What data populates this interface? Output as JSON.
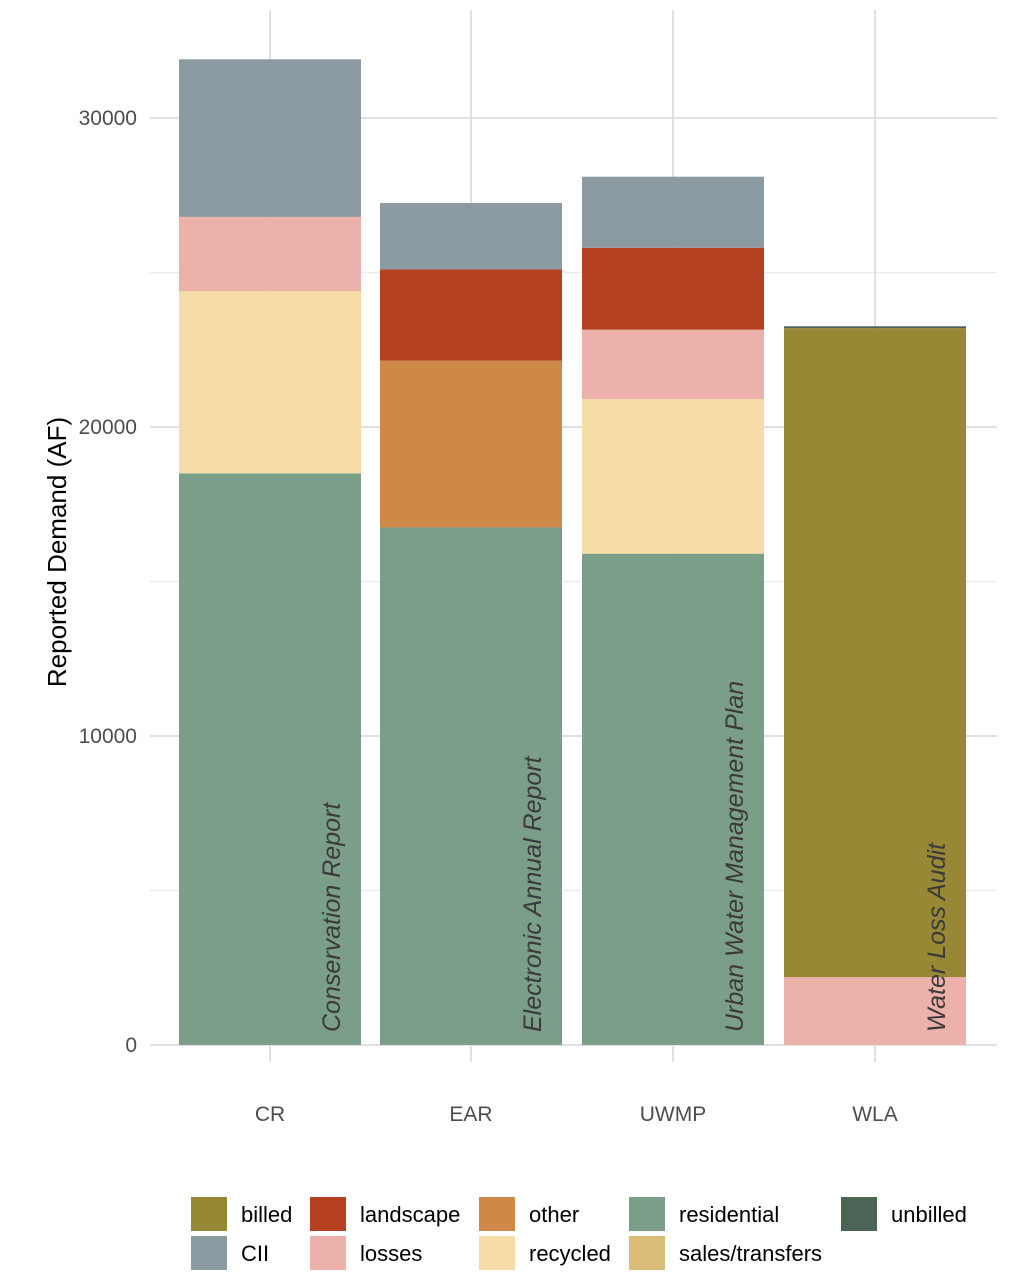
{
  "chart_data": {
    "type": "bar",
    "stacked": true,
    "ylabel": "Reported Demand (AF)",
    "xlabel": "",
    "ylim": [
      0,
      30000
    ],
    "yticks": [
      0,
      10000,
      20000,
      30000
    ],
    "grid": true,
    "legend_position": "bottom",
    "categories": [
      "CR",
      "EAR",
      "UWMP",
      "WLA"
    ],
    "bar_labels": [
      "Conservation Report",
      "Electronic Annual Report",
      "Urban Water Management Plan",
      "Water Loss Audit"
    ],
    "series": [
      {
        "name": "residential",
        "color": "#7b9e89",
        "values": [
          18500,
          16750,
          15900,
          0
        ]
      },
      {
        "name": "other",
        "color": "#ce8847",
        "values": [
          0,
          5400,
          0,
          0
        ]
      },
      {
        "name": "recycled",
        "color": "#f6dca6",
        "values": [
          5900,
          0,
          5000,
          0
        ]
      },
      {
        "name": "losses",
        "color": "#ebb1aa",
        "values": [
          2400,
          0,
          2250,
          2200
        ]
      },
      {
        "name": "landscape",
        "color": "#b64122",
        "values": [
          0,
          2950,
          2650,
          0
        ]
      },
      {
        "name": "CII",
        "color": "#8b9ba1",
        "values": [
          5100,
          2150,
          2300,
          0
        ]
      },
      {
        "name": "billed",
        "color": "#978835",
        "values": [
          0,
          0,
          0,
          21000
        ]
      },
      {
        "name": "unbilled",
        "color": "#4b6455",
        "values": [
          0,
          0,
          0,
          60
        ]
      },
      {
        "name": "sales/transfers",
        "color": "#dabd77",
        "values": [
          0,
          0,
          0,
          0
        ]
      }
    ],
    "legend": {
      "rows": [
        [
          "billed",
          "landscape",
          "other",
          "residential",
          "unbilled"
        ],
        [
          "CII",
          "losses",
          "recycled",
          "sales/transfers"
        ]
      ]
    }
  }
}
